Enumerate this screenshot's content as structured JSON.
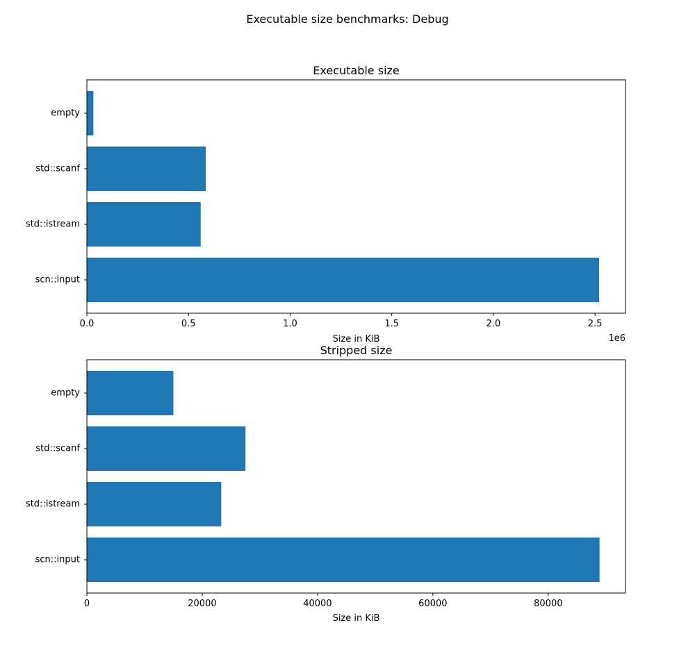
{
  "figure": {
    "suptitle": "Executable size benchmarks: Debug"
  },
  "chart_data": [
    {
      "type": "bar",
      "orientation": "horizontal",
      "title": "Executable size",
      "xlabel": "Size in KiB",
      "ylabel": "",
      "x_offset_label": "1e6",
      "xlim": [
        0,
        2.65
      ],
      "x_ticks": [
        {
          "value": 0.0,
          "label": "0.0"
        },
        {
          "value": 0.5,
          "label": "0.5"
        },
        {
          "value": 1.0,
          "label": "1.0"
        },
        {
          "value": 1.5,
          "label": "1.5"
        },
        {
          "value": 2.0,
          "label": "2.0"
        },
        {
          "value": 2.5,
          "label": "2.5"
        }
      ],
      "categories": [
        "scn::input",
        "std::istream",
        "std::scanf",
        "empty"
      ],
      "values": [
        2.52,
        0.56,
        0.585,
        0.032
      ],
      "color": "#1f77b4",
      "grid": false,
      "legend": null
    },
    {
      "type": "bar",
      "orientation": "horizontal",
      "title": "Stripped size",
      "xlabel": "Size in KiB",
      "ylabel": "",
      "xlim": [
        0,
        93400
      ],
      "x_ticks": [
        {
          "value": 0,
          "label": "0"
        },
        {
          "value": 20000,
          "label": "20000"
        },
        {
          "value": 40000,
          "label": "40000"
        },
        {
          "value": 60000,
          "label": "60000"
        },
        {
          "value": 80000,
          "label": "80000"
        }
      ],
      "categories": [
        "scn::input",
        "std::istream",
        "std::scanf",
        "empty"
      ],
      "values": [
        88900,
        23300,
        27500,
        15000
      ],
      "color": "#1f77b4",
      "grid": false,
      "legend": null
    }
  ]
}
